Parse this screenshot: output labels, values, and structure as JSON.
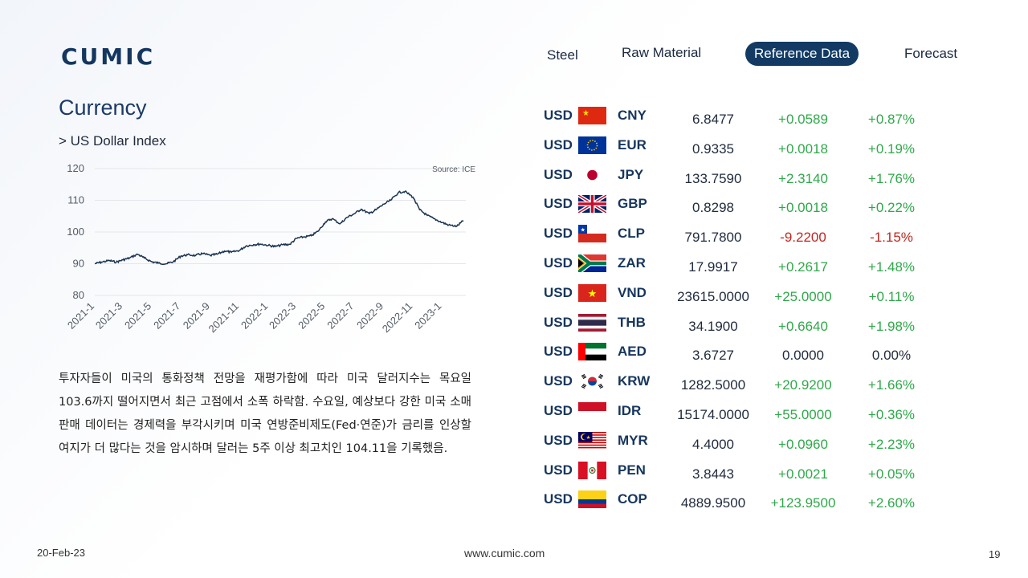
{
  "brand": {
    "logo_text": "CUMIC"
  },
  "nav": {
    "items": [
      {
        "label": "Steel"
      },
      {
        "label": "Raw Material"
      },
      {
        "label": "Reference Data"
      },
      {
        "label": "Forecast"
      }
    ]
  },
  "section": {
    "title": "Currency",
    "subtitle": "> US Dollar Index"
  },
  "chart_data": {
    "type": "line",
    "source": "Source: ICE",
    "ylim": [
      80,
      120
    ],
    "yticks": [
      120,
      110,
      100,
      90,
      80
    ],
    "xticks": [
      "2021-1",
      "2021-3",
      "2021-5",
      "2021-7",
      "2021-9",
      "2021-11",
      "2022-1",
      "2022-3",
      "2022-5",
      "2022-7",
      "2022-9",
      "2022-11",
      "2023-1"
    ],
    "grid": true,
    "legend": "none",
    "color": "#1a3350",
    "series": [
      {
        "x": [
          "2021-01-01",
          "2021-01-15",
          "2021-02-01",
          "2021-02-15",
          "2021-03-01",
          "2021-03-15",
          "2021-04-01",
          "2021-04-15",
          "2021-05-01",
          "2021-05-15",
          "2021-06-01",
          "2021-06-15",
          "2021-07-01",
          "2021-07-15",
          "2021-08-01",
          "2021-08-15",
          "2021-09-01",
          "2021-09-15",
          "2021-10-01",
          "2021-10-15",
          "2021-11-01",
          "2021-11-15",
          "2021-12-01",
          "2021-12-15",
          "2022-01-01",
          "2022-01-15",
          "2022-02-01",
          "2022-02-15",
          "2022-03-01",
          "2022-03-15",
          "2022-04-01",
          "2022-04-15",
          "2022-05-01",
          "2022-05-15",
          "2022-06-01",
          "2022-06-15",
          "2022-07-01",
          "2022-07-15",
          "2022-08-01",
          "2022-08-15",
          "2022-09-01",
          "2022-09-15",
          "2022-10-01",
          "2022-10-15",
          "2022-11-01",
          "2022-11-15",
          "2022-12-01",
          "2022-12-15",
          "2023-01-01",
          "2023-01-15",
          "2023-02-01",
          "2023-02-15"
        ],
        "values": [
          90.0,
          90.5,
          91.0,
          90.5,
          91.2,
          91.8,
          93.0,
          91.8,
          90.6,
          90.2,
          90.0,
          90.6,
          92.4,
          92.8,
          92.6,
          93.2,
          92.6,
          93.0,
          94.0,
          93.6,
          94.2,
          95.6,
          96.0,
          96.2,
          95.8,
          95.4,
          96.0,
          96.1,
          98.0,
          98.4,
          98.8,
          100.2,
          103.2,
          104.2,
          102.6,
          104.6,
          105.8,
          107.2,
          105.8,
          107.0,
          108.8,
          110.0,
          112.4,
          112.8,
          111.0,
          107.0,
          105.2,
          104.2,
          103.0,
          102.2,
          101.8,
          103.6
        ]
      }
    ]
  },
  "description": "투자자들이 미국의 통화정책 전망을 재평가함에 따라 미국 달러지수는 목요일 103.6까지 떨어지면서 최근 고점에서 소폭 하락함. 수요일, 예상보다 강한 미국 소매 판매 데이터는 경제력을 부각시키며 미국 연방준비제도(Fed·연준)가 금리를 인상할 여지가 더 많다는 것을 암시하며 달러는 5주 이상 최고치인 104.11을 기록했음.",
  "currency_table": [
    {
      "base": "USD",
      "quote": "CNY",
      "flag": "cn-flag-icon",
      "rate": "6.8477",
      "change": "+0.0589",
      "pct": "+0.87%",
      "dir": "pos"
    },
    {
      "base": "USD",
      "quote": "EUR",
      "flag": "eu-flag-icon",
      "rate": "0.9335",
      "change": "+0.0018",
      "pct": "+0.19%",
      "dir": "pos"
    },
    {
      "base": "USD",
      "quote": "JPY",
      "flag": "jp-flag-icon",
      "rate": "133.7590",
      "change": "+2.3140",
      "pct": "+1.76%",
      "dir": "pos"
    },
    {
      "base": "USD",
      "quote": "GBP",
      "flag": "gb-flag-icon",
      "rate": "0.8298",
      "change": "+0.0018",
      "pct": "+0.22%",
      "dir": "pos"
    },
    {
      "base": "USD",
      "quote": "CLP",
      "flag": "cl-flag-icon",
      "rate": "791.7800",
      "change": "-9.2200",
      "pct": "-1.15%",
      "dir": "neg"
    },
    {
      "base": "USD",
      "quote": "ZAR",
      "flag": "za-flag-icon",
      "rate": "17.9917",
      "change": "+0.2617",
      "pct": "+1.48%",
      "dir": "pos"
    },
    {
      "base": "USD",
      "quote": "VND",
      "flag": "vn-flag-icon",
      "rate": "23615.0000",
      "change": "+25.0000",
      "pct": "+0.11%",
      "dir": "pos"
    },
    {
      "base": "USD",
      "quote": "THB",
      "flag": "th-flag-icon",
      "rate": "34.1900",
      "change": "+0.6640",
      "pct": "+1.98%",
      "dir": "pos"
    },
    {
      "base": "USD",
      "quote": "AED",
      "flag": "ae-flag-icon",
      "rate": "3.6727",
      "change": "0.0000",
      "pct": "0.00%",
      "dir": "neu"
    },
    {
      "base": "USD",
      "quote": "KRW",
      "flag": "kr-flag-icon",
      "rate": "1282.5000",
      "change": "+20.9200",
      "pct": "+1.66%",
      "dir": "pos"
    },
    {
      "base": "USD",
      "quote": "IDR",
      "flag": "id-flag-icon",
      "rate": "15174.0000",
      "change": "+55.0000",
      "pct": "+0.36%",
      "dir": "pos"
    },
    {
      "base": "USD",
      "quote": "MYR",
      "flag": "my-flag-icon",
      "rate": "4.4000",
      "change": "+0.0960",
      "pct": "+2.23%",
      "dir": "pos"
    },
    {
      "base": "USD",
      "quote": "PEN",
      "flag": "pe-flag-icon",
      "rate": "3.8443",
      "change": "+0.0021",
      "pct": "+0.05%",
      "dir": "pos"
    },
    {
      "base": "USD",
      "quote": "COP",
      "flag": "co-flag-icon",
      "rate": "4889.9500",
      "change": "+123.9500",
      "pct": "+2.60%",
      "dir": "pos"
    }
  ],
  "colors": {
    "brand": "#14365f",
    "positive": "#2fa84a",
    "negative": "#c0261f",
    "nav_active": "#123a63"
  },
  "footer": {
    "date": "20-Feb-23",
    "url": "www.cumic.com",
    "page": "19"
  }
}
